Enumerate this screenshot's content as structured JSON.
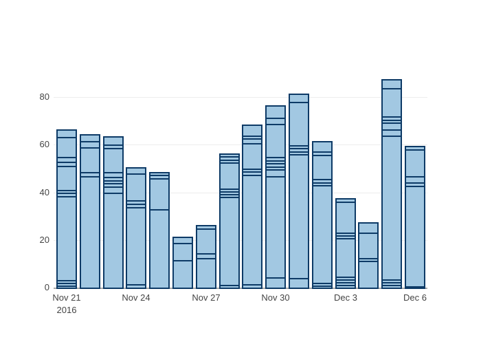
{
  "figure": {
    "background_color": "#ffffff",
    "title": "",
    "legend": null
  },
  "colors": {
    "bar_fill": "#a2c8e2",
    "bar_border": "#0d3a66",
    "gridline": "#ececec",
    "zero_line": "#a7a7a7",
    "tick_text": "#444444"
  },
  "chart_data": {
    "type": "bar",
    "stacked": true,
    "title": "",
    "xlabel": "",
    "ylabel": "",
    "ylim": [
      0,
      92
    ],
    "grid": true,
    "yticks": [
      "0",
      "20",
      "40",
      "60",
      "80"
    ],
    "ytick_values": [
      0,
      20,
      40,
      60,
      80
    ],
    "xticks": [
      {
        "label": "Nov 21",
        "sublabel": "2016",
        "bar_index": 0
      },
      {
        "label": "Nov 24",
        "sublabel": "",
        "bar_index": 3
      },
      {
        "label": "Nov 27",
        "sublabel": "",
        "bar_index": 6
      },
      {
        "label": "Nov 30",
        "sublabel": "",
        "bar_index": 9
      },
      {
        "label": "Dec 3",
        "sublabel": "",
        "bar_index": 12
      },
      {
        "label": "Dec 6",
        "sublabel": "",
        "bar_index": 15
      }
    ],
    "categories": [
      "Nov 21 2016",
      "Nov 22 2016",
      "Nov 23 2016",
      "Nov 24 2016",
      "Nov 25 2016",
      "Nov 26 2016",
      "Nov 27 2016",
      "Nov 28 2016",
      "Nov 29 2016",
      "Nov 30 2016",
      "Dec 1 2016",
      "Dec 2 2016",
      "Dec 3 2016",
      "Dec 4 2016",
      "Dec 5 2016",
      "Dec 6 2016"
    ],
    "totals": [
      67,
      65,
      64,
      51,
      49,
      22,
      27,
      57,
      69,
      77,
      82,
      62,
      38,
      28,
      88,
      60
    ],
    "bars": [
      {
        "date": "Nov 21 2016",
        "total": 67,
        "segment_boundaries": [
          1.2,
          2.4,
          3.6,
          38.8,
          40,
          41.3,
          51.3,
          53.2,
          55.2,
          63.5
        ]
      },
      {
        "date": "Nov 22 2016",
        "total": 65,
        "segment_boundaries": [
          47,
          48.7,
          59.3,
          61.7
        ]
      },
      {
        "date": "Nov 23 2016",
        "total": 64,
        "segment_boundaries": [
          40,
          42.7,
          44.1,
          45.4,
          46.8,
          48.7,
          59,
          60.5
        ]
      },
      {
        "date": "Nov 24 2016",
        "total": 51,
        "segment_boundaries": [
          1.8,
          34,
          35.5,
          37,
          48.3
        ]
      },
      {
        "date": "Nov 25 2016",
        "total": 49,
        "segment_boundaries": [
          33.3,
          46.3,
          47.7
        ]
      },
      {
        "date": "Nov 26 2016",
        "total": 22,
        "segment_boundaries": [
          11.8,
          19.2
        ]
      },
      {
        "date": "Nov 27 2016",
        "total": 27,
        "segment_boundaries": [
          12.8,
          14.6,
          25.2
        ]
      },
      {
        "date": "Nov 28 2016",
        "total": 57,
        "segment_boundaries": [
          1.4,
          38.5,
          39.6,
          40.8,
          42,
          52.9,
          54.1,
          55.4
        ]
      },
      {
        "date": "Nov 29 2016",
        "total": 69,
        "segment_boundaries": [
          1.7,
          47.7,
          49,
          50.3,
          61,
          63,
          64.2
        ]
      },
      {
        "date": "Nov 30 2016",
        "total": 77,
        "segment_boundaries": [
          4.7,
          47.2,
          50,
          51.2,
          52.5,
          53.8,
          55.3,
          69,
          71.5
        ]
      },
      {
        "date": "Dec 1 2016",
        "total": 82,
        "segment_boundaries": [
          4.3,
          56.4,
          57.6,
          58.8,
          60,
          78.3
        ]
      },
      {
        "date": "Dec 2 2016",
        "total": 62,
        "segment_boundaries": [
          1.2,
          2.4,
          43.2,
          44.5,
          45.8,
          56.1,
          57.4
        ]
      },
      {
        "date": "Dec 3 2016",
        "total": 38,
        "segment_boundaries": [
          1.4,
          2.6,
          3.8,
          5,
          21,
          22.3,
          23.5,
          36.3
        ]
      },
      {
        "date": "Dec 4 2016",
        "total": 28,
        "segment_boundaries": [
          11.5,
          12.8,
          23.4
        ]
      },
      {
        "date": "Dec 5 2016",
        "total": 88,
        "segment_boundaries": [
          1.4,
          2.6,
          3.8,
          64,
          66.7,
          69.5,
          70.8,
          72.2,
          84
        ]
      },
      {
        "date": "Dec 6 2016",
        "total": 60,
        "segment_boundaries": [
          1,
          43,
          44.5,
          47,
          58.2
        ]
      }
    ],
    "legend_position": "none"
  }
}
